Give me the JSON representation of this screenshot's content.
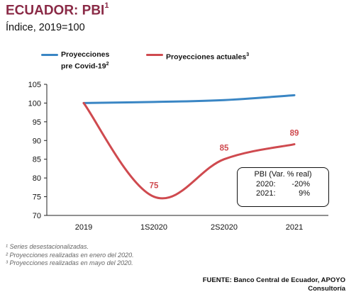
{
  "header": {
    "title": "ECUADOR: PBI",
    "title_sup": "1",
    "subtitle": "Índice, 2019=100"
  },
  "legend": [
    {
      "label": "Proyecciones\npre Covid-19",
      "sup": "2",
      "color": "#3a86c4"
    },
    {
      "label": "Proyecciones actuales",
      "sup": "3",
      "color": "#cf4a4f"
    }
  ],
  "chart_data": {
    "type": "line",
    "categories": [
      "2019",
      "1S2020",
      "2S2020",
      "2021"
    ],
    "ylim": [
      70,
      105
    ],
    "yticks": [
      70,
      75,
      80,
      85,
      90,
      95,
      100,
      105
    ],
    "series": [
      {
        "name": "Proyecciones pre Covid-19",
        "color": "#3a86c4",
        "values": [
          100,
          100.3,
          100.8,
          102.1
        ]
      },
      {
        "name": "Proyecciones actuales",
        "color": "#cf4a4f",
        "values": [
          100,
          75,
          85,
          89
        ]
      }
    ],
    "data_labels": [
      {
        "series": 1,
        "index": 1,
        "text": "75"
      },
      {
        "series": 1,
        "index": 2,
        "text": "85"
      },
      {
        "series": 1,
        "index": 3,
        "text": "89"
      }
    ],
    "label_color": "#cf4a4f"
  },
  "annotation": {
    "title": "PBI (Var. % real)",
    "rows": [
      {
        "year": "2020:",
        "value": "-20%"
      },
      {
        "year": "2021:",
        "value": "9%"
      }
    ]
  },
  "footnotes": [
    "¹ Series desestacionalizadas.",
    "² Proyecciones realizadas en enero del 2020.",
    "³ Proyecciones realizadas en mayo del 2020."
  ],
  "source": "FUENTE: Banco Central de Ecuador, APOYO\nConsultoría"
}
